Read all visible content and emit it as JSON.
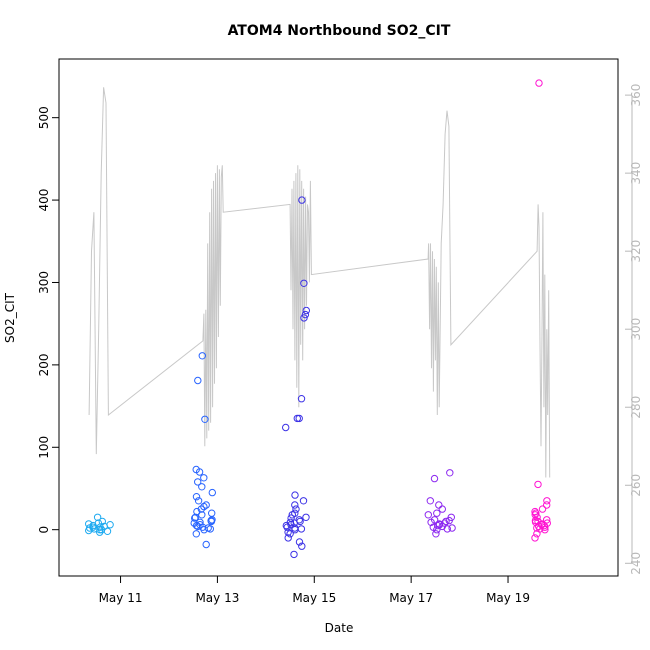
{
  "chart_data": {
    "type": "scatter",
    "title": "ATOM4 Northbound SO2_CIT",
    "xlabel": "Date",
    "ylabel": "SO2_CIT",
    "x_ticks": [
      "May 11",
      "May 13",
      "May 15",
      "May 17",
      "May 19"
    ],
    "x_tick_days": [
      11,
      13,
      15,
      17,
      19
    ],
    "xlim_days": [
      9.75,
      21.25
    ],
    "ylim": [
      -55,
      570
    ],
    "y_ticks": [
      0,
      100,
      200,
      300,
      400,
      500
    ],
    "y2lim": [
      237,
      369
    ],
    "y2_ticks": [
      240,
      260,
      280,
      300,
      320,
      340,
      360
    ],
    "secondary_line_color": "#c8c8c8",
    "point_colors": [
      "#1eaaf0",
      "#2864ff",
      "#3c32e6",
      "#8c28f0",
      "#ff14d2"
    ],
    "series": [
      {
        "color": "#1eaaf0",
        "flight_day_range": [
          10.3,
          10.85
        ],
        "cluster_values": [
          -3,
          0,
          2,
          5,
          8,
          3,
          -1,
          6,
          10,
          15,
          1,
          -2,
          4,
          7,
          0,
          3
        ]
      },
      {
        "color": "#2864ff",
        "flight_day_range": [
          12.5,
          12.9
        ],
        "cluster_values": [
          -18,
          -5,
          0,
          3,
          5,
          8,
          10,
          12,
          15,
          18,
          20,
          22,
          25,
          28,
          30,
          35,
          40,
          45,
          52,
          58,
          63,
          70,
          73,
          2,
          6,
          9,
          14,
          11,
          4,
          1
        ],
        "outliers": [
          211,
          181,
          134
        ]
      },
      {
        "color": "#3c32e6",
        "flight_day_range": [
          14.4,
          14.85
        ],
        "cluster_values": [
          -30,
          -20,
          -15,
          -10,
          -5,
          0,
          3,
          5,
          8,
          10,
          12,
          15,
          18,
          20,
          25,
          30,
          35,
          42,
          2,
          6,
          9,
          1,
          -3,
          14
        ],
        "outliers": [
          400,
          299,
          266,
          261,
          257,
          159,
          135,
          135,
          124
        ]
      },
      {
        "color": "#8c28f0",
        "flight_day_range": [
          17.35,
          17.85
        ],
        "cluster_values": [
          -5,
          0,
          3,
          5,
          8,
          10,
          12,
          15,
          18,
          20,
          25,
          30,
          35,
          2,
          7,
          11,
          4,
          6,
          9,
          1
        ],
        "outliers": [
          69,
          62
        ]
      },
      {
        "color": "#ff14d2",
        "flight_day_range": [
          19.55,
          19.85
        ],
        "cluster_values": [
          -10,
          -5,
          0,
          3,
          5,
          8,
          10,
          12,
          15,
          18,
          20,
          22,
          25,
          30,
          35,
          2,
          7,
          11,
          4,
          6,
          9,
          1
        ],
        "outliers": [
          55,
          542
        ]
      }
    ],
    "secondary_line": [
      [
        10.35,
        278
      ],
      [
        10.4,
        320
      ],
      [
        10.45,
        330
      ],
      [
        10.5,
        268
      ],
      [
        10.55,
        300
      ],
      [
        10.6,
        340
      ],
      [
        10.65,
        362
      ],
      [
        10.7,
        358
      ],
      [
        10.75,
        278
      ],
      [
        12.7,
        297
      ],
      [
        12.72,
        304
      ],
      [
        12.74,
        270
      ],
      [
        12.76,
        305
      ],
      [
        12.78,
        272
      ],
      [
        12.8,
        322
      ],
      [
        12.82,
        274
      ],
      [
        12.84,
        330
      ],
      [
        12.86,
        276
      ],
      [
        12.88,
        336
      ],
      [
        12.9,
        280
      ],
      [
        12.92,
        338
      ],
      [
        12.94,
        286
      ],
      [
        12.96,
        340
      ],
      [
        12.98,
        290
      ],
      [
        13.0,
        342
      ],
      [
        13.02,
        298
      ],
      [
        13.04,
        341
      ],
      [
        13.06,
        306
      ],
      [
        13.08,
        339
      ],
      [
        13.1,
        342
      ],
      [
        13.12,
        330
      ],
      [
        14.5,
        332
      ],
      [
        14.52,
        310
      ],
      [
        14.54,
        336
      ],
      [
        14.56,
        300
      ],
      [
        14.58,
        338
      ],
      [
        14.6,
        292
      ],
      [
        14.62,
        340
      ],
      [
        14.64,
        285
      ],
      [
        14.66,
        342
      ],
      [
        14.68,
        280
      ],
      [
        14.7,
        341
      ],
      [
        14.72,
        296
      ],
      [
        14.74,
        338
      ],
      [
        14.76,
        292
      ],
      [
        14.78,
        336
      ],
      [
        14.8,
        300
      ],
      [
        14.82,
        334
      ],
      [
        14.84,
        306
      ],
      [
        14.86,
        332
      ],
      [
        14.88,
        330
      ],
      [
        14.9,
        312
      ],
      [
        14.92,
        338
      ],
      [
        14.94,
        314
      ],
      [
        17.35,
        318
      ],
      [
        17.36,
        322
      ],
      [
        17.38,
        300
      ],
      [
        17.4,
        322
      ],
      [
        17.42,
        290
      ],
      [
        17.44,
        320
      ],
      [
        17.46,
        284
      ],
      [
        17.48,
        318
      ],
      [
        17.5,
        292
      ],
      [
        17.52,
        316
      ],
      [
        17.54,
        278
      ],
      [
        17.56,
        312
      ],
      [
        17.58,
        280
      ],
      [
        17.62,
        322
      ],
      [
        17.66,
        332
      ],
      [
        17.7,
        350
      ],
      [
        17.74,
        356
      ],
      [
        17.78,
        352
      ],
      [
        17.82,
        296
      ],
      [
        19.6,
        320
      ],
      [
        19.62,
        332
      ],
      [
        19.64,
        326
      ],
      [
        19.66,
        296
      ],
      [
        19.68,
        270
      ],
      [
        19.7,
        296
      ],
      [
        19.72,
        330
      ],
      [
        19.74,
        280
      ],
      [
        19.76,
        314
      ],
      [
        19.78,
        262
      ],
      [
        19.8,
        300
      ],
      [
        19.82,
        278
      ],
      [
        19.84,
        310
      ],
      [
        19.86,
        262
      ]
    ]
  }
}
